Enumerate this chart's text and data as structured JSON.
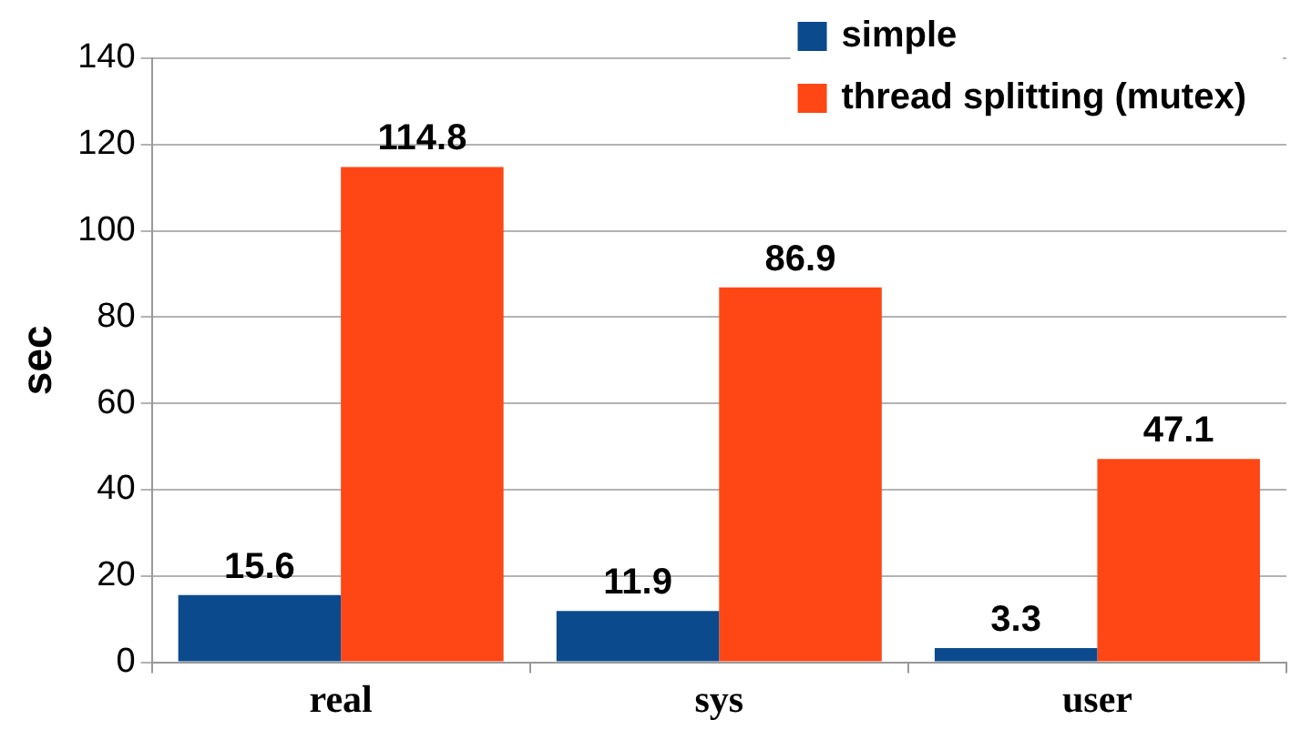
{
  "chart_data": {
    "type": "bar",
    "ylabel": "sec",
    "categories": [
      "real",
      "sys",
      "user"
    ],
    "series": [
      {
        "name": "simple",
        "color": "#0b4a8c",
        "values": [
          15.6,
          11.9,
          3.3
        ]
      },
      {
        "name": "thread splitting (mutex)",
        "color": "#ff4615",
        "values": [
          114.8,
          86.9,
          47.1
        ]
      }
    ],
    "ylim": [
      0,
      140
    ],
    "yticks": [
      0,
      20,
      40,
      60,
      80,
      100,
      120,
      140
    ],
    "grid": "y",
    "legend": "top right",
    "data_labels": true
  }
}
